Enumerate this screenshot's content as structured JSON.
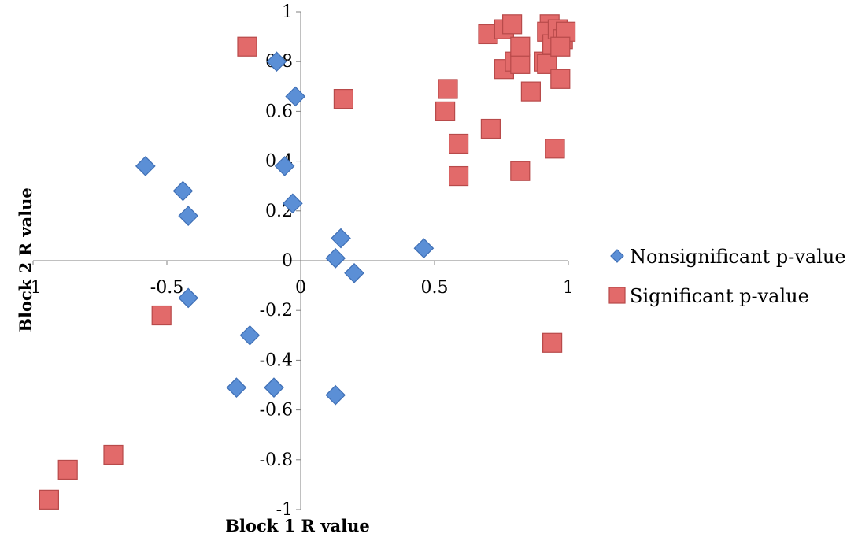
{
  "chart_data": {
    "type": "scatter",
    "title": "",
    "xlabel": "Block 1 R value",
    "ylabel": "Block 2 R value",
    "xlim": [
      -1,
      1
    ],
    "ylim": [
      -1,
      1
    ],
    "xticks": [
      -1,
      -0.5,
      0,
      0.5,
      1
    ],
    "xtick_labels": [
      "-1",
      "-0.5",
      "0",
      "0.5",
      "1"
    ],
    "yticks": [
      -1,
      -0.8,
      -0.6,
      -0.4,
      -0.2,
      0,
      0.2,
      0.4,
      0.6,
      0.8,
      1
    ],
    "ytick_labels": [
      "-1",
      "-0.8",
      "-0.6",
      "-0.4",
      "-0.2",
      "0",
      "0.2",
      "0.4",
      "0.6",
      "0.8",
      "1"
    ],
    "grid": false,
    "legend_position": "right",
    "series": [
      {
        "name": "Nonsignificant p-value",
        "marker": "diamond",
        "color": "#5b8fd6",
        "stroke": "#3f6fb5",
        "points": [
          [
            -0.58,
            0.38
          ],
          [
            -0.44,
            0.28
          ],
          [
            -0.42,
            0.18
          ],
          [
            -0.42,
            -0.15
          ],
          [
            -0.09,
            0.8
          ],
          [
            -0.02,
            0.66
          ],
          [
            -0.06,
            0.38
          ],
          [
            -0.03,
            0.23
          ],
          [
            -0.19,
            -0.3
          ],
          [
            -0.24,
            -0.51
          ],
          [
            -0.1,
            -0.51
          ],
          [
            0.15,
            0.09
          ],
          [
            0.13,
            0.01
          ],
          [
            0.2,
            -0.05
          ],
          [
            0.13,
            -0.54
          ],
          [
            0.46,
            0.05
          ]
        ]
      },
      {
        "name": "Significant p-value",
        "marker": "square",
        "color": "#e26a6a",
        "stroke": "#b84a4a",
        "points": [
          [
            -0.2,
            0.86
          ],
          [
            0.16,
            0.65
          ],
          [
            -0.52,
            -0.22
          ],
          [
            -0.94,
            -0.96
          ],
          [
            -0.87,
            -0.84
          ],
          [
            -0.7,
            -0.78
          ],
          [
            0.55,
            0.69
          ],
          [
            0.54,
            0.6
          ],
          [
            0.59,
            0.47
          ],
          [
            0.59,
            0.34
          ],
          [
            0.71,
            0.53
          ],
          [
            0.82,
            0.36
          ],
          [
            0.94,
            -0.33
          ],
          [
            0.95,
            0.45
          ],
          [
            0.7,
            0.91
          ],
          [
            0.76,
            0.93
          ],
          [
            0.79,
            0.95
          ],
          [
            0.76,
            0.77
          ],
          [
            0.8,
            0.8
          ],
          [
            0.82,
            0.79
          ],
          [
            0.82,
            0.86
          ],
          [
            0.86,
            0.68
          ],
          [
            0.91,
            0.8
          ],
          [
            0.92,
            0.79
          ],
          [
            0.93,
            0.95
          ],
          [
            0.92,
            0.92
          ],
          [
            0.94,
            0.87
          ],
          [
            0.96,
            0.93
          ],
          [
            0.97,
            0.73
          ],
          [
            0.98,
            0.89
          ],
          [
            0.99,
            0.92
          ],
          [
            0.97,
            0.86
          ]
        ]
      }
    ]
  }
}
